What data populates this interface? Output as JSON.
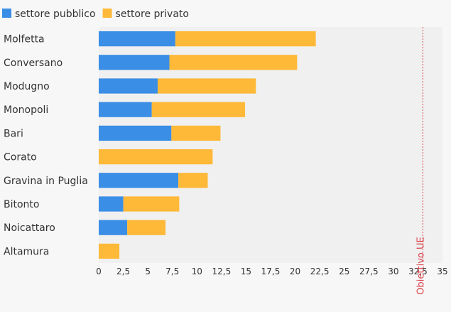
{
  "chart_data": {
    "type": "bar",
    "orientation": "horizontal",
    "stacked": true,
    "categories": [
      "Molfetta",
      "Conversano",
      "Modugno",
      "Monopoli",
      "Bari",
      "Corato",
      "Gravina in Puglia",
      "Bitonto",
      "Noicattaro",
      "Altamura"
    ],
    "series": [
      {
        "name": "settore pubblico",
        "color": "#3a8ee6",
        "values": [
          7.8,
          7.2,
          6.0,
          5.4,
          7.4,
          0,
          8.1,
          2.5,
          2.9,
          0
        ]
      },
      {
        "name": "settore privato",
        "color": "#ffb938",
        "values": [
          14.3,
          13.0,
          10.0,
          9.5,
          5.0,
          11.6,
          3.0,
          5.7,
          3.9,
          2.1
        ]
      }
    ],
    "xlim": [
      0,
      35
    ],
    "x_ticks": [
      "0",
      "2,5",
      "5",
      "7,5",
      "10",
      "12,5",
      "15",
      "17,5",
      "20",
      "22,5",
      "25",
      "27,5",
      "30",
      "32,5",
      "35"
    ],
    "target_line": {
      "value": 33,
      "label": "Obiettivo UE",
      "color": "#d9434b"
    },
    "legend_position": "top-left",
    "grid": false,
    "xlabel": "",
    "ylabel": "",
    "title": ""
  }
}
